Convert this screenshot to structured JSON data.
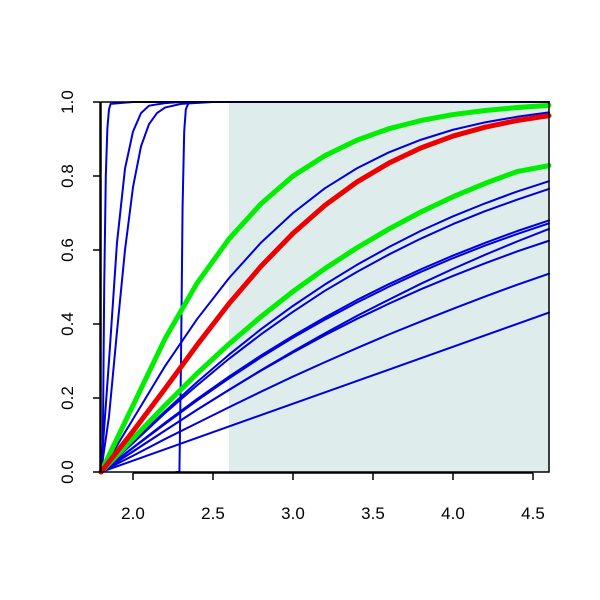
{
  "chart_data": {
    "type": "line",
    "title": "",
    "xlabel": "",
    "ylabel": "",
    "xlim": [
      1.8,
      4.6
    ],
    "ylim": [
      0,
      1
    ],
    "x_ticks": [
      2.0,
      2.5,
      3.0,
      3.5,
      4.0,
      4.5
    ],
    "x_tick_labels": [
      "2.0",
      "2.5",
      "3.0",
      "3.5",
      "4.0",
      "4.5"
    ],
    "y_ticks": [
      0.0,
      0.2,
      0.4,
      0.6,
      0.8,
      1.0
    ],
    "y_tick_labels": [
      "0.0",
      "0.2",
      "0.4",
      "0.6",
      "0.8",
      "1.0"
    ],
    "grid": false,
    "legend": "none",
    "shaded_region": {
      "x_from": 2.6,
      "x_to": 4.6,
      "color": "#deecec"
    },
    "colors": {
      "blue": "#0000dd",
      "red": "#ee0000",
      "green": "#00ee00",
      "shade": "#deecec"
    },
    "series": [
      {
        "color": "#0000dd",
        "weight": "thin",
        "x": [
          1.81,
          1.82,
          1.83,
          1.84,
          1.85,
          1.86,
          2.0,
          4.6
        ],
        "y": [
          0.0,
          0.5,
          0.8,
          0.93,
          0.98,
          0.995,
          1.0,
          1.0
        ]
      },
      {
        "color": "#0000dd",
        "weight": "thin",
        "x": [
          1.8,
          1.85,
          1.9,
          1.95,
          2.0,
          2.05,
          2.1,
          2.2,
          2.3,
          2.5
        ],
        "y": [
          0.0,
          0.3,
          0.62,
          0.82,
          0.92,
          0.97,
          0.99,
          0.997,
          1.0,
          1.0
        ]
      },
      {
        "color": "#0000dd",
        "weight": "thin",
        "x": [
          1.8,
          1.85,
          1.9,
          1.95,
          2.0,
          2.05,
          2.1,
          2.15,
          2.2,
          2.3,
          2.5
        ],
        "y": [
          0.0,
          0.15,
          0.38,
          0.6,
          0.77,
          0.88,
          0.94,
          0.97,
          0.985,
          0.995,
          1.0
        ]
      },
      {
        "color": "#0000dd",
        "weight": "thin",
        "x": [
          2.27,
          2.29,
          2.3,
          2.31,
          2.32,
          2.33,
          2.35,
          2.4,
          4.6
        ],
        "y": [
          0.0,
          0.0,
          0.3,
          0.72,
          0.92,
          0.98,
          1.0,
          1.0,
          1.0
        ]
      },
      {
        "color": "#0000dd",
        "weight": "thin",
        "x": [
          1.8,
          2.0,
          2.2,
          2.4,
          2.6,
          2.8,
          3.0,
          3.2,
          3.4,
          3.6,
          3.8,
          4.0,
          4.2,
          4.4,
          4.6
        ],
        "y": [
          0,
          0.143,
          0.286,
          0.413,
          0.524,
          0.62,
          0.7,
          0.767,
          0.821,
          0.864,
          0.898,
          0.925,
          0.945,
          0.96,
          0.972
        ]
      },
      {
        "color": "#0000dd",
        "weight": "thin",
        "x": [
          1.8,
          2.0,
          2.2,
          2.4,
          2.6,
          2.8,
          3.0,
          3.2,
          3.4,
          3.6,
          3.8,
          4.0,
          4.2,
          4.4,
          4.6
        ],
        "y": [
          0,
          0.078,
          0.159,
          0.234,
          0.306,
          0.372,
          0.433,
          0.49,
          0.541,
          0.588,
          0.631,
          0.67,
          0.705,
          0.736,
          0.765
        ]
      },
      {
        "color": "#0000dd",
        "weight": "thin",
        "x": [
          1.8,
          2.0,
          2.2,
          2.4,
          2.6,
          2.8,
          3.0,
          3.2,
          3.4,
          3.6,
          3.8,
          4.0,
          4.2,
          4.4,
          4.6
        ],
        "y": [
          0,
          0.081,
          0.164,
          0.243,
          0.317,
          0.386,
          0.449,
          0.507,
          0.56,
          0.608,
          0.652,
          0.691,
          0.726,
          0.758,
          0.786
        ]
      },
      {
        "color": "#0000dd",
        "weight": "thin",
        "x": [
          1.8,
          2.0,
          2.2,
          2.4,
          2.6,
          2.8,
          3.0,
          3.2,
          3.4,
          3.6,
          3.8,
          4.0,
          4.2,
          4.4,
          4.6
        ],
        "y": [
          0,
          0.066,
          0.133,
          0.197,
          0.258,
          0.315,
          0.368,
          0.418,
          0.465,
          0.508,
          0.548,
          0.585,
          0.619,
          0.651,
          0.68
        ]
      },
      {
        "color": "#0000dd",
        "weight": "thin",
        "x": [
          1.8,
          2.0,
          2.2,
          2.4,
          2.6,
          2.8,
          3.0,
          3.2,
          3.4,
          3.6,
          3.8,
          4.0,
          4.2,
          4.4,
          4.6
        ],
        "y": [
          0,
          0.065,
          0.13,
          0.193,
          0.253,
          0.31,
          0.363,
          0.412,
          0.458,
          0.501,
          0.541,
          0.578,
          0.612,
          0.643,
          0.672
        ]
      },
      {
        "color": "#0000dd",
        "weight": "thin",
        "x": [
          1.8,
          2.0,
          2.2,
          2.4,
          2.6,
          2.8,
          3.0,
          3.2,
          3.4,
          3.6,
          3.8,
          4.0,
          4.2,
          4.4,
          4.6
        ],
        "y": [
          0,
          0.055,
          0.112,
          0.168,
          0.222,
          0.274,
          0.323,
          0.37,
          0.414,
          0.455,
          0.494,
          0.53,
          0.564,
          0.596,
          0.625
        ]
      },
      {
        "color": "#0000dd",
        "weight": "thin",
        "x": [
          1.8,
          2.0,
          2.2,
          2.4,
          2.6,
          2.8,
          3.0,
          3.2,
          3.4,
          3.6,
          3.8,
          4.0,
          4.2,
          4.4,
          4.6
        ],
        "y": [
          0,
          0.044,
          0.089,
          0.132,
          0.175,
          0.217,
          0.258,
          0.297,
          0.335,
          0.372,
          0.407,
          0.441,
          0.474,
          0.506,
          0.536
        ]
      },
      {
        "color": "#0000dd",
        "weight": "thin",
        "x": [
          1.8,
          2.6,
          3.4,
          4.6
        ],
        "y": [
          0,
          0.123,
          0.246,
          0.431
        ]
      },
      {
        "color": "#0000dd",
        "weight": "thin",
        "x": [
          1.8,
          2.0,
          2.2,
          2.4,
          2.6,
          2.8,
          3.0,
          3.2,
          3.4,
          3.6,
          3.8,
          4.0,
          4.2,
          4.4,
          4.6
        ],
        "y": [
          0,
          0.056,
          0.112,
          0.168,
          0.222,
          0.275,
          0.326,
          0.375,
          0.422,
          0.466,
          0.509,
          0.549,
          0.587,
          0.623,
          0.657
        ]
      },
      {
        "color": "#00ee00",
        "weight": "thick",
        "x": [
          1.8,
          2.0,
          2.2,
          2.4,
          2.6,
          2.8,
          3.0,
          3.2,
          3.4,
          3.6,
          3.8,
          4.0,
          4.2,
          4.4,
          4.6
        ],
        "y": [
          0,
          0.18,
          0.36,
          0.51,
          0.63,
          0.725,
          0.8,
          0.855,
          0.897,
          0.928,
          0.95,
          0.966,
          0.977,
          0.985,
          0.991
        ]
      },
      {
        "color": "#00ee00",
        "weight": "thick",
        "x": [
          1.8,
          2.0,
          2.2,
          2.4,
          2.6,
          2.8,
          3.0,
          3.2,
          3.4,
          3.6,
          3.8,
          4.0,
          4.2,
          4.4,
          4.6
        ],
        "y": [
          0,
          0.09,
          0.18,
          0.266,
          0.346,
          0.42,
          0.488,
          0.55,
          0.606,
          0.657,
          0.703,
          0.744,
          0.78,
          0.812,
          0.828
        ]
      },
      {
        "color": "#ee0000",
        "weight": "thick",
        "x": [
          1.8,
          2.0,
          2.2,
          2.4,
          2.6,
          2.8,
          3.0,
          3.2,
          3.4,
          3.6,
          3.8,
          4.0,
          4.2,
          4.4,
          4.6
        ],
        "y": [
          0,
          0.11,
          0.225,
          0.343,
          0.455,
          0.556,
          0.645,
          0.721,
          0.784,
          0.835,
          0.876,
          0.908,
          0.932,
          0.95,
          0.963
        ]
      }
    ]
  }
}
